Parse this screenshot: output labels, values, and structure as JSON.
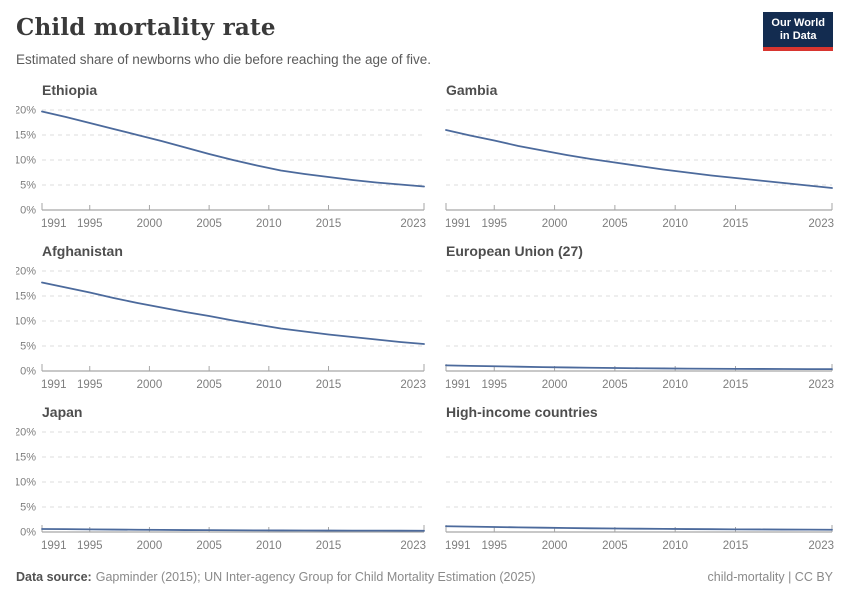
{
  "header": {
    "title": "Child mortality rate",
    "subtitle": "Estimated share of newborns who die before reaching the age of five.",
    "logo_line1": "Our World",
    "logo_line2": "in Data"
  },
  "footer": {
    "source_label": "Data source:",
    "source_text": "Gapminder (2015); UN Inter-agency Group for Child Mortality Estimation (2025)",
    "note": "child-mortality | CC BY"
  },
  "colors": {
    "line": "#4c6a9c",
    "grid": "#dddddd",
    "axis": "#a6a6a6",
    "tick_label": "#7e7e7e",
    "chart_title": "#4e4e4e",
    "logo_bg": "#132c50",
    "logo_red": "#d8352f"
  },
  "axes": {
    "x_min": 1991,
    "x_max": 2023,
    "y_min": 0,
    "y_max": 20,
    "x_ticks": [
      1991,
      1995,
      2000,
      2005,
      2010,
      2015,
      2023
    ],
    "y_ticks": [
      0,
      5,
      10,
      15,
      20
    ],
    "y_tick_labels": [
      "0%",
      "5%",
      "10%",
      "15%",
      "20%"
    ],
    "grid_style": "dashed",
    "legend": "none"
  },
  "chart_data": [
    {
      "type": "line",
      "title": "Ethiopia",
      "unit": "%",
      "xlim": [
        1991,
        2023
      ],
      "ylim": [
        0,
        20
      ],
      "x": [
        1991,
        1993,
        1995,
        1997,
        1999,
        2001,
        2003,
        2005,
        2007,
        2009,
        2011,
        2013,
        2015,
        2017,
        2019,
        2021,
        2023
      ],
      "values": [
        19.7,
        18.6,
        17.4,
        16.2,
        15.0,
        13.8,
        12.5,
        11.2,
        10.0,
        8.9,
        7.9,
        7.2,
        6.6,
        6.0,
        5.5,
        5.1,
        4.7
      ]
    },
    {
      "type": "line",
      "title": "Gambia",
      "unit": "%",
      "xlim": [
        1991,
        2023
      ],
      "ylim": [
        0,
        20
      ],
      "x": [
        1991,
        1993,
        1995,
        1997,
        1999,
        2001,
        2003,
        2005,
        2007,
        2009,
        2011,
        2013,
        2015,
        2017,
        2019,
        2021,
        2023
      ],
      "values": [
        16.0,
        14.9,
        13.9,
        12.8,
        11.9,
        11.0,
        10.2,
        9.5,
        8.8,
        8.1,
        7.5,
        6.9,
        6.4,
        5.9,
        5.4,
        4.9,
        4.4
      ]
    },
    {
      "type": "line",
      "title": "Afghanistan",
      "unit": "%",
      "xlim": [
        1991,
        2023
      ],
      "ylim": [
        0,
        20
      ],
      "x": [
        1991,
        1993,
        1995,
        1997,
        1999,
        2001,
        2003,
        2005,
        2007,
        2009,
        2011,
        2013,
        2015,
        2017,
        2019,
        2021,
        2023
      ],
      "values": [
        17.7,
        16.7,
        15.7,
        14.6,
        13.6,
        12.7,
        11.8,
        11.0,
        10.1,
        9.3,
        8.5,
        7.9,
        7.3,
        6.8,
        6.3,
        5.8,
        5.4
      ]
    },
    {
      "type": "line",
      "title": "European Union (27)",
      "unit": "%",
      "xlim": [
        1991,
        2023
      ],
      "ylim": [
        0,
        20
      ],
      "x": [
        1991,
        1993,
        1995,
        1997,
        1999,
        2001,
        2003,
        2005,
        2007,
        2009,
        2011,
        2013,
        2015,
        2017,
        2019,
        2021,
        2023
      ],
      "values": [
        1.12,
        1.03,
        0.95,
        0.86,
        0.78,
        0.71,
        0.65,
        0.6,
        0.55,
        0.51,
        0.48,
        0.45,
        0.43,
        0.41,
        0.4,
        0.38,
        0.37
      ]
    },
    {
      "type": "line",
      "title": "Japan",
      "unit": "%",
      "xlim": [
        1991,
        2023
      ],
      "ylim": [
        0,
        20
      ],
      "x": [
        1991,
        1993,
        1995,
        1997,
        1999,
        2001,
        2003,
        2005,
        2007,
        2009,
        2011,
        2013,
        2015,
        2017,
        2019,
        2021,
        2023
      ],
      "values": [
        0.6,
        0.57,
        0.53,
        0.49,
        0.45,
        0.42,
        0.39,
        0.37,
        0.35,
        0.33,
        0.31,
        0.3,
        0.29,
        0.28,
        0.27,
        0.26,
        0.25
      ]
    },
    {
      "type": "line",
      "title": "High-income countries",
      "unit": "%",
      "xlim": [
        1991,
        2023
      ],
      "ylim": [
        0,
        20
      ],
      "x": [
        1991,
        1993,
        1995,
        1997,
        1999,
        2001,
        2003,
        2005,
        2007,
        2009,
        2011,
        2013,
        2015,
        2017,
        2019,
        2021,
        2023
      ],
      "values": [
        1.15,
        1.07,
        1.0,
        0.93,
        0.86,
        0.8,
        0.74,
        0.7,
        0.66,
        0.62,
        0.59,
        0.56,
        0.53,
        0.51,
        0.49,
        0.47,
        0.45
      ]
    }
  ]
}
